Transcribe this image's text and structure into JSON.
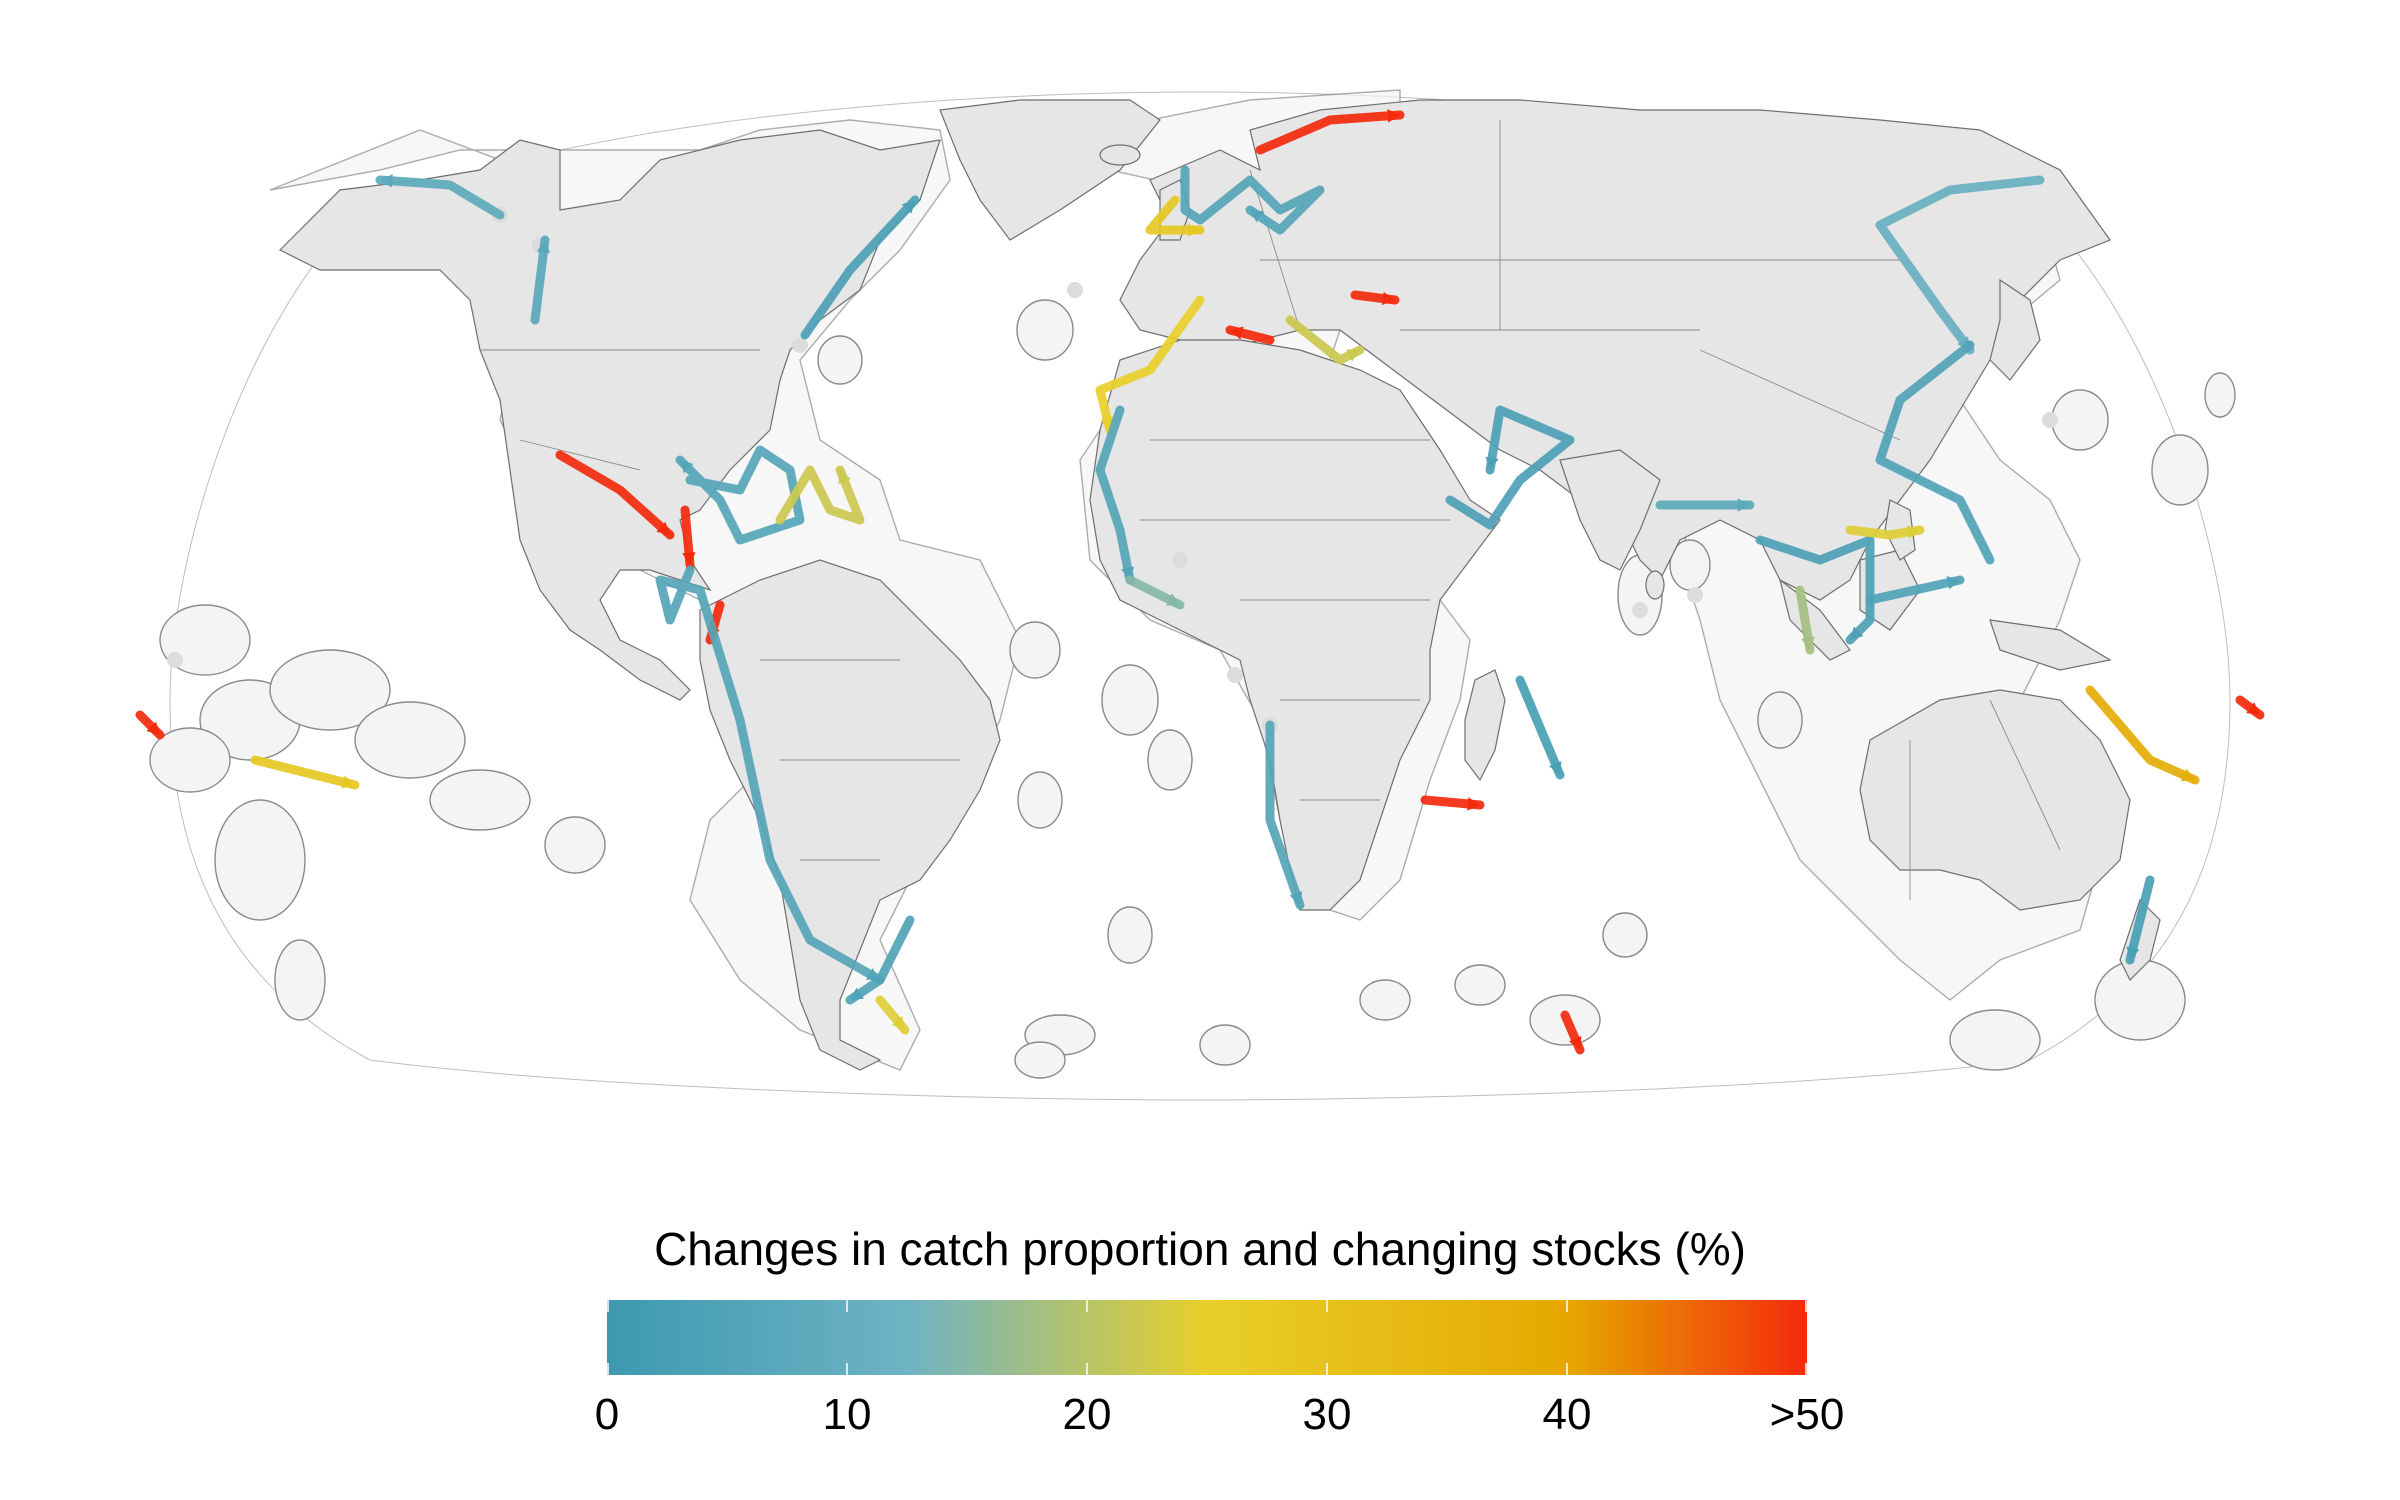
{
  "legend": {
    "title": "Changes in catch proportion and changing stocks (%)",
    "colors": [
      "#3d99af",
      "#6eb3c4",
      "#e8cf2a",
      "#e5a800",
      "#f42a0c"
    ],
    "ticks": [
      {
        "value": 0,
        "label": "0"
      },
      {
        "value": 10,
        "label": "10"
      },
      {
        "value": 20,
        "label": "20"
      },
      {
        "value": 30,
        "label": "30"
      },
      {
        "value": 40,
        "label": "40"
      },
      {
        "value": 50,
        "label": ">50"
      }
    ]
  },
  "map": {
    "land_color": "#e6e6e6",
    "eez_outline_color": "#8a8a8a",
    "background": "#ffffff",
    "flows": [
      {
        "region": "Alaska",
        "change": 8
      },
      {
        "region": "US West Coast",
        "change": 7
      },
      {
        "region": "US East Coast",
        "change": 4
      },
      {
        "region": "Caribbean",
        "change": 6
      },
      {
        "region": "Eastern Caribbean",
        "change": 22
      },
      {
        "region": "Eastern Pacific",
        "change": 55
      },
      {
        "region": "Central America",
        "change": 55
      },
      {
        "region": "Colombia / Ecuador",
        "change": 55
      },
      {
        "region": "Peru / Chile",
        "change": 6
      },
      {
        "region": "Argentina",
        "change": 5
      },
      {
        "region": "Falklands",
        "change": 24
      },
      {
        "region": "Barents Sea",
        "change": 55
      },
      {
        "region": "North Sea",
        "change": 6
      },
      {
        "region": "Celtic Sea",
        "change": 28
      },
      {
        "region": "Iberia",
        "change": 25
      },
      {
        "region": "Mediterranean",
        "change": 55
      },
      {
        "region": "Aegean Sea",
        "change": 22
      },
      {
        "region": "Black Sea",
        "change": 55
      },
      {
        "region": "West Africa",
        "change": 6
      },
      {
        "region": "Gulf of Guinea",
        "change": 15
      },
      {
        "region": "Southern Africa",
        "change": 6
      },
      {
        "region": "Madagascar",
        "change": 55
      },
      {
        "region": "Mascarene",
        "change": 3
      },
      {
        "region": "Arabian Sea",
        "change": 4
      },
      {
        "region": "Bay of Bengal",
        "change": 8
      },
      {
        "region": "Sumatra",
        "change": 18
      },
      {
        "region": "Southeast Asia",
        "change": 4
      },
      {
        "region": "Philippines",
        "change": 24
      },
      {
        "region": "Northwest Pacific",
        "change": 11
      },
      {
        "region": "Coral Triangle",
        "change": 5
      },
      {
        "region": "Coral Sea",
        "change": 38
      },
      {
        "region": "Western Pacific",
        "change": 55
      },
      {
        "region": "New Zealand",
        "change": 3
      },
      {
        "region": "Kerguelen",
        "change": 55
      },
      {
        "region": "Hawaii",
        "change": 55
      },
      {
        "region": "Line Islands",
        "change": 28
      }
    ]
  }
}
